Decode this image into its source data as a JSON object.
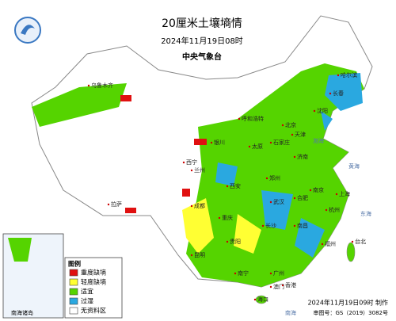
{
  "header": {
    "title": "20厘米土壤墒情",
    "date": "2024年11月19日08时",
    "issuer": "中央气象台"
  },
  "legend": {
    "title": "图例",
    "items": [
      {
        "label": "重度缺墒",
        "color": "#e01010"
      },
      {
        "label": "轻度缺墒",
        "color": "#ffff33"
      },
      {
        "label": "适宜",
        "color": "#55d400"
      },
      {
        "label": "过湿",
        "color": "#2aa8e0"
      },
      {
        "label": "无资料区",
        "color": "#ffffff"
      }
    ]
  },
  "inset": {
    "label": "南海诸岛"
  },
  "footer": {
    "made": "2024年11月19日09时 制作",
    "approval": "审图号：GS（2019）3082号"
  },
  "places": [
    "哈尔滨",
    "长春",
    "沈阳",
    "北京",
    "天津",
    "石家庄",
    "太原",
    "济南",
    "呼和浩特",
    "银川",
    "西宁",
    "兰州",
    "西安",
    "郑州",
    "南京",
    "上海",
    "合肥",
    "武汉",
    "杭州",
    "成都",
    "重庆",
    "长沙",
    "南昌",
    "福州",
    "贵阳",
    "昆明",
    "南宁",
    "广州",
    "香港",
    "澳门",
    "台北",
    "海口",
    "拉萨",
    "乌鲁木齐"
  ],
  "seas": [
    "渤海",
    "黄海",
    "东海",
    "南海"
  ]
}
